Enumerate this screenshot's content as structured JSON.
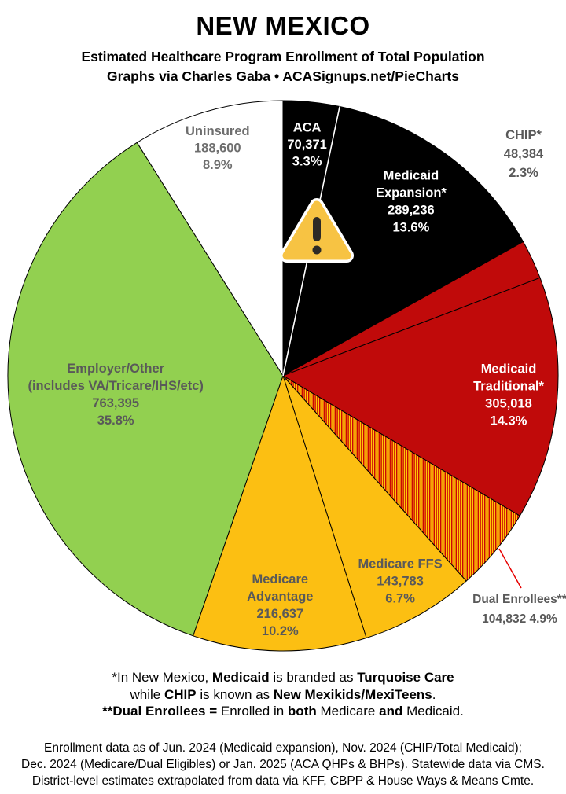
{
  "header": {
    "title": "NEW MEXICO",
    "subtitle": "Estimated Healthcare Program Enrollment of Total Population",
    "credit": "Graphs via Charles Gaba   •   ACASignups.net/PieCharts"
  },
  "chart_data": {
    "type": "pie",
    "title": "NEW MEXICO — Estimated Healthcare Program Enrollment of Total Population",
    "start_angle_deg": 0,
    "direction": "clockwise",
    "legend_position": "labels-on-slices",
    "slices": [
      {
        "id": "aca",
        "label": "ACA",
        "value": 70371,
        "pct": 3.3,
        "color": "#000000",
        "text_color": "#ffffff",
        "label_placement": "inside",
        "lines": [
          "ACA",
          "70,371",
          "3.3%"
        ]
      },
      {
        "id": "medicaid-expansion",
        "label": "Medicaid Expansion*",
        "value": 289236,
        "pct": 13.6,
        "color": "#000000",
        "text_color": "#ffffff",
        "label_placement": "inside",
        "lines": [
          "Medicaid",
          "Expansion*",
          "289,236",
          "13.6%"
        ]
      },
      {
        "id": "chip",
        "label": "CHIP*",
        "value": 48384,
        "pct": 2.3,
        "color": "#c00a0a",
        "text_color": "#595959",
        "label_placement": "outside",
        "lines": [
          "CHIP*",
          "48,384",
          "2.3%"
        ]
      },
      {
        "id": "medicaid-traditional",
        "label": "Medicaid Traditional*",
        "value": 305018,
        "pct": 14.3,
        "color": "#c00a0a",
        "text_color": "#ffffff",
        "label_placement": "inside",
        "lines": [
          "Medicaid",
          "Traditional*",
          "305,018",
          "14.3%"
        ]
      },
      {
        "id": "dual-enrollees",
        "label": "Dual Enrollees**",
        "value": 104832,
        "pct": 4.9,
        "color": "hatch",
        "text_color": "#595959",
        "label_placement": "outside",
        "leader_line": true,
        "lines": [
          "Dual Enrollees**",
          "104,832 4.9%"
        ]
      },
      {
        "id": "medicare-ffs",
        "label": "Medicare FFS",
        "value": 143783,
        "pct": 6.7,
        "color": "#fcbf12",
        "text_color": "#595959",
        "label_placement": "inside",
        "lines": [
          "Medicare FFS",
          "143,783",
          "6.7%"
        ]
      },
      {
        "id": "medicare-advantage",
        "label": "Medicare Advantage",
        "value": 216637,
        "pct": 10.2,
        "color": "#fcbf12",
        "text_color": "#595959",
        "label_placement": "inside",
        "lines": [
          "Medicare",
          "Advantage",
          "216,637",
          "10.2%"
        ]
      },
      {
        "id": "employer-other",
        "label": "Employer/Other (includes VA/Tricare/IHS/etc)",
        "value": 763395,
        "pct": 35.8,
        "color": "#92d050",
        "text_color": "#595959",
        "label_placement": "inside",
        "lines": [
          "Employer/Other",
          "(includes VA/Tricare/IHS/etc)",
          "763,395",
          "35.8%"
        ]
      },
      {
        "id": "uninsured",
        "label": "Uninsured",
        "value": 188600,
        "pct": 8.9,
        "color": "#ffffff",
        "text_color": "#6e6e6e",
        "label_placement": "inside",
        "lines": [
          "Uninsured",
          "188,600",
          "8.9%"
        ]
      }
    ],
    "hatch_colors": {
      "stripe": "#cc0505",
      "background": "#ffc607"
    },
    "divider_between": [
      "aca",
      "medicaid-expansion"
    ],
    "warning_icon": {
      "fill": "#f7c343",
      "rim": "#ffffff",
      "mark_color": "#2d2a26"
    },
    "leader_line_color": "#e60000",
    "slice_stroke_color": "#000000"
  },
  "footnotes": {
    "lines": [
      [
        {
          "t": "*In New Mexico, ",
          "b": 0
        },
        {
          "t": "Medicaid",
          "b": 1
        },
        {
          "t": " is branded as ",
          "b": 0
        },
        {
          "t": "Turquoise Care",
          "b": 1
        }
      ],
      [
        {
          "t": "while ",
          "b": 0
        },
        {
          "t": "CHIP",
          "b": 1
        },
        {
          "t": " is known as ",
          "b": 0
        },
        {
          "t": "New Mexikids/MexiTeens",
          "b": 1
        },
        {
          "t": ".",
          "b": 0
        }
      ],
      [
        {
          "t": "**Dual Enrollees =",
          "b": 1
        },
        {
          "t": " Enrolled in ",
          "b": 0
        },
        {
          "t": "both",
          "b": 1
        },
        {
          "t": " Medicare ",
          "b": 0
        },
        {
          "t": "and",
          "b": 1
        },
        {
          "t": " Medicaid.",
          "b": 0
        }
      ]
    ]
  },
  "sources": {
    "lines": [
      "Enrollment data as of Jun. 2024 (Medicaid expansion), Nov. 2024 (CHIP/Total Medicaid);",
      "Dec. 2024 (Medicare/Dual Eligibles) or Jan. 2025 (ACA QHPs & BHPs). Statewide data via CMS.",
      "District-level estimates extrapolated from data via KFF, CBPP & House Ways & Means Cmte."
    ]
  }
}
